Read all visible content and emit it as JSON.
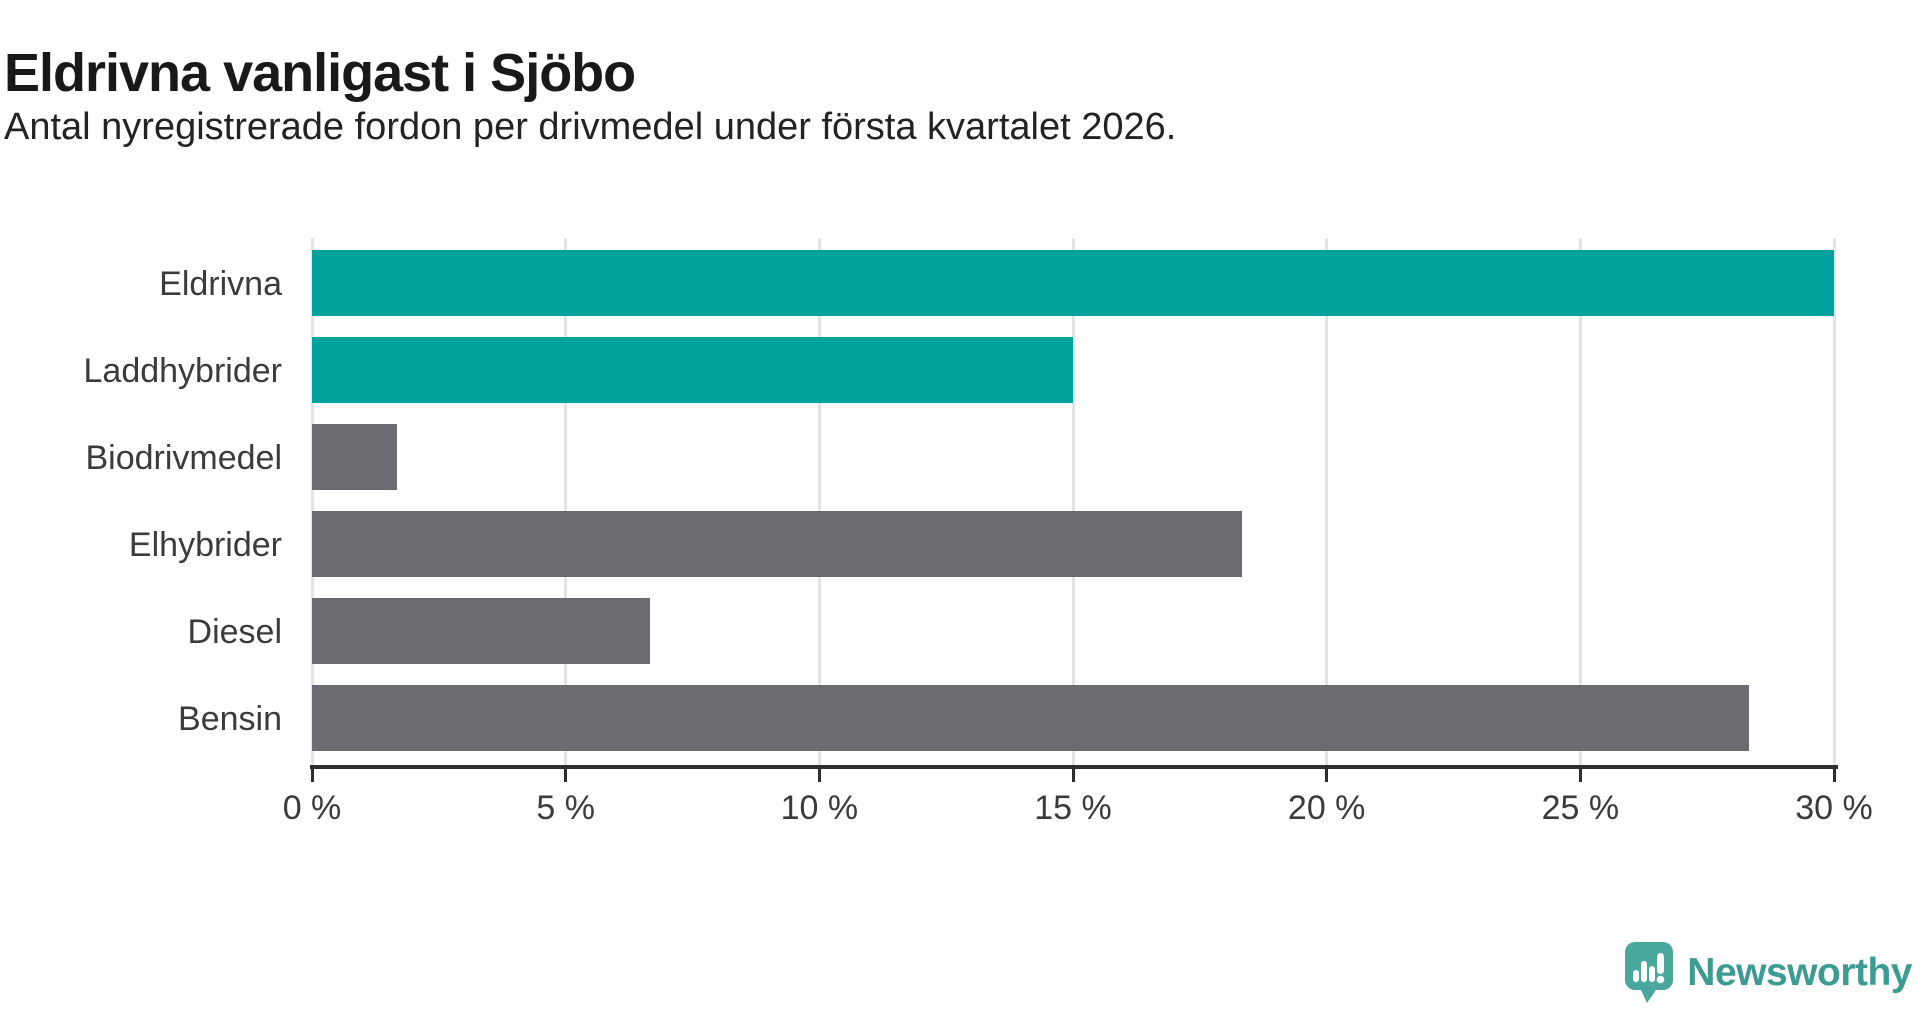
{
  "header": {
    "title": "Eldrivna vanligast i Sjöbo",
    "subtitle": "Antal nyregistrerade fordon per drivmedel under första kvartalet 2026."
  },
  "chart_data": {
    "type": "bar",
    "orientation": "horizontal",
    "title": "Eldrivna vanligast i Sjöbo",
    "subtitle": "Antal nyregistrerade fordon per drivmedel under första kvartalet 2026.",
    "categories": [
      "Eldrivna",
      "Laddhybrider",
      "Biodrivmedel",
      "Elhybrider",
      "Diesel",
      "Bensin"
    ],
    "values": [
      30,
      15,
      1.67,
      18.33,
      6.67,
      28.33
    ],
    "unit": "%",
    "xlim": [
      0,
      30
    ],
    "xticks": [
      0,
      5,
      10,
      15,
      20,
      25,
      30
    ],
    "xtick_labels": [
      "0 %",
      "5 %",
      "10 %",
      "15 %",
      "20 %",
      "25 %",
      "30 %"
    ],
    "bar_colors": [
      "#00a39b",
      "#00a39b",
      "#6c6b71",
      "#6c6b71",
      "#6c6b71",
      "#6c6b71"
    ],
    "highlight_color": "#00a39b",
    "default_color": "#6c6b71",
    "grid": true,
    "legend": "none"
  },
  "branding": {
    "logo_text": "Newsworthy",
    "logo_icon": "newsworthy-bubble-chart-icon",
    "logo_text_color": "#3d9c92",
    "logo_icon_color": "#4aa79c"
  }
}
